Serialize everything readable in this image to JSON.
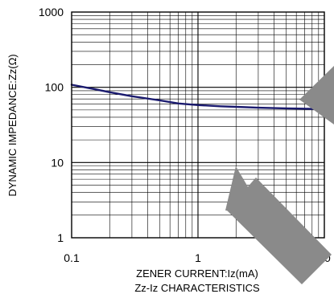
{
  "chart_data": {
    "type": "line",
    "title": "Zz-Iz CHARACTERISTICS",
    "xlabel": "ZENER CURRENT:Iz(mA)",
    "ylabel": "DYNAMIC IMPEDANCE:Zz(Ω)",
    "x_scale": "log",
    "y_scale": "log",
    "xlim": [
      0.1,
      10
    ],
    "ylim": [
      1,
      1000
    ],
    "x_ticks": [
      {
        "value": 0.1,
        "label": "0.1"
      },
      {
        "value": 1,
        "label": "1"
      },
      {
        "value": 10,
        "label": "10"
      }
    ],
    "y_ticks": [
      {
        "value": 1,
        "label": "1"
      },
      {
        "value": 10,
        "label": "10"
      },
      {
        "value": 100,
        "label": "100"
      },
      {
        "value": 1000,
        "label": "1000"
      }
    ],
    "grid": true,
    "series": [
      {
        "color": "#1a1a6e",
        "points": [
          [
            0.1,
            108
          ],
          [
            0.15,
            95
          ],
          [
            0.2,
            86
          ],
          [
            0.3,
            76
          ],
          [
            0.5,
            67
          ],
          [
            0.7,
            61
          ],
          [
            1,
            58
          ],
          [
            1.5,
            56
          ],
          [
            2,
            55
          ],
          [
            3,
            53.5
          ],
          [
            5,
            52.5
          ],
          [
            7,
            52
          ],
          [
            10,
            51
          ]
        ]
      }
    ]
  }
}
